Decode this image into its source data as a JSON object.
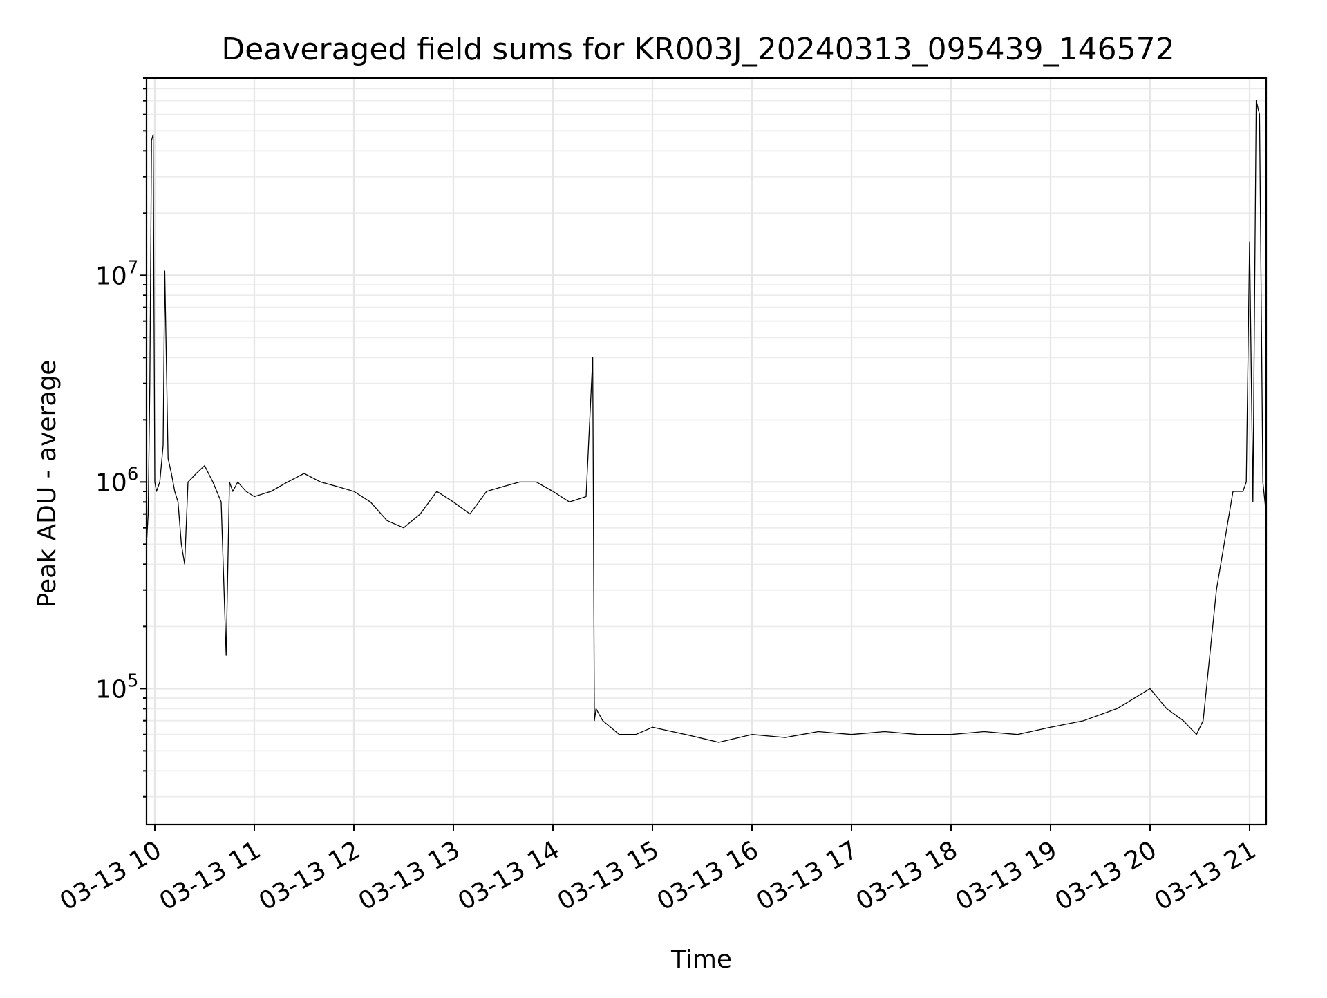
{
  "chart_data": {
    "type": "line",
    "title": "Deaveraged field sums for KR003J_20240313_095439_146572",
    "xlabel": "Time",
    "ylabel": "Peak ADU - average",
    "y_scale": "log",
    "ylim": [
      22000,
      90000000
    ],
    "xlim": [
      "2024-03-13 09:55",
      "2024-03-13 21:10"
    ],
    "grid": true,
    "x_ticks": [
      {
        "value": "2024-03-13 10:00",
        "label": "03-13 10"
      },
      {
        "value": "2024-03-13 11:00",
        "label": "03-13 11"
      },
      {
        "value": "2024-03-13 12:00",
        "label": "03-13 12"
      },
      {
        "value": "2024-03-13 13:00",
        "label": "03-13 13"
      },
      {
        "value": "2024-03-13 14:00",
        "label": "03-13 14"
      },
      {
        "value": "2024-03-13 15:00",
        "label": "03-13 15"
      },
      {
        "value": "2024-03-13 16:00",
        "label": "03-13 16"
      },
      {
        "value": "2024-03-13 17:00",
        "label": "03-13 17"
      },
      {
        "value": "2024-03-13 18:00",
        "label": "03-13 18"
      },
      {
        "value": "2024-03-13 19:00",
        "label": "03-13 19"
      },
      {
        "value": "2024-03-13 20:00",
        "label": "03-13 20"
      },
      {
        "value": "2024-03-13 21:00",
        "label": "03-13 21"
      }
    ],
    "y_ticks": [
      {
        "value": 100000,
        "base": "10",
        "exp": "5"
      },
      {
        "value": 1000000,
        "base": "10",
        "exp": "6"
      },
      {
        "value": 10000000,
        "base": "10",
        "exp": "7"
      }
    ],
    "series": [
      {
        "color": "#000000",
        "x": [
          "2024-03-13 09:55",
          "2024-03-13 09:56",
          "2024-03-13 09:57",
          "2024-03-13 09:58",
          "2024-03-13 09:59",
          "2024-03-13 10:00",
          "2024-03-13 10:01",
          "2024-03-13 10:03",
          "2024-03-13 10:05",
          "2024-03-13 10:06",
          "2024-03-13 10:08",
          "2024-03-13 10:10",
          "2024-03-13 10:12",
          "2024-03-13 10:14",
          "2024-03-13 10:16",
          "2024-03-13 10:18",
          "2024-03-13 10:20",
          "2024-03-13 10:25",
          "2024-03-13 10:30",
          "2024-03-13 10:35",
          "2024-03-13 10:40",
          "2024-03-13 10:43",
          "2024-03-13 10:45",
          "2024-03-13 10:47",
          "2024-03-13 10:50",
          "2024-03-13 10:55",
          "2024-03-13 11:00",
          "2024-03-13 11:10",
          "2024-03-13 11:20",
          "2024-03-13 11:30",
          "2024-03-13 11:40",
          "2024-03-13 11:50",
          "2024-03-13 12:00",
          "2024-03-13 12:10",
          "2024-03-13 12:20",
          "2024-03-13 12:30",
          "2024-03-13 12:40",
          "2024-03-13 12:50",
          "2024-03-13 13:00",
          "2024-03-13 13:10",
          "2024-03-13 13:20",
          "2024-03-13 13:30",
          "2024-03-13 13:40",
          "2024-03-13 13:50",
          "2024-03-13 14:00",
          "2024-03-13 14:10",
          "2024-03-13 14:20",
          "2024-03-13 14:24",
          "2024-03-13 14:25",
          "2024-03-13 14:26",
          "2024-03-13 14:30",
          "2024-03-13 14:40",
          "2024-03-13 14:50",
          "2024-03-13 15:00",
          "2024-03-13 15:20",
          "2024-03-13 15:40",
          "2024-03-13 16:00",
          "2024-03-13 16:20",
          "2024-03-13 16:40",
          "2024-03-13 17:00",
          "2024-03-13 17:20",
          "2024-03-13 17:40",
          "2024-03-13 18:00",
          "2024-03-13 18:20",
          "2024-03-13 18:40",
          "2024-03-13 19:00",
          "2024-03-13 19:20",
          "2024-03-13 19:40",
          "2024-03-13 20:00",
          "2024-03-13 20:10",
          "2024-03-13 20:20",
          "2024-03-13 20:28",
          "2024-03-13 20:32",
          "2024-03-13 20:40",
          "2024-03-13 20:50",
          "2024-03-13 20:56",
          "2024-03-13 20:58",
          "2024-03-13 21:00",
          "2024-03-13 21:02",
          "2024-03-13 21:04",
          "2024-03-13 21:06",
          "2024-03-13 21:08",
          "2024-03-13 21:10"
        ],
        "y": [
          500000,
          700000,
          3000000,
          45000000,
          48000000,
          1000000,
          900000,
          1000000,
          1500000,
          10500000,
          1300000,
          1100000,
          900000,
          800000,
          500000,
          400000,
          1000000,
          1100000,
          1200000,
          1000000,
          800000,
          145000,
          1000000,
          900000,
          1000000,
          900000,
          850000,
          900000,
          1000000,
          1100000,
          1000000,
          950000,
          900000,
          800000,
          650000,
          600000,
          700000,
          900000,
          800000,
          700000,
          900000,
          950000,
          1000000,
          1000000,
          900000,
          800000,
          850000,
          4000000,
          70000,
          80000,
          70000,
          60000,
          60000,
          65000,
          60000,
          55000,
          60000,
          58000,
          62000,
          60000,
          62000,
          60000,
          60000,
          62000,
          60000,
          65000,
          70000,
          80000,
          100000,
          80000,
          70000,
          60000,
          70000,
          300000,
          900000,
          900000,
          1000000,
          14500000,
          800000,
          70000000,
          60000000,
          1000000,
          700000
        ]
      }
    ]
  }
}
